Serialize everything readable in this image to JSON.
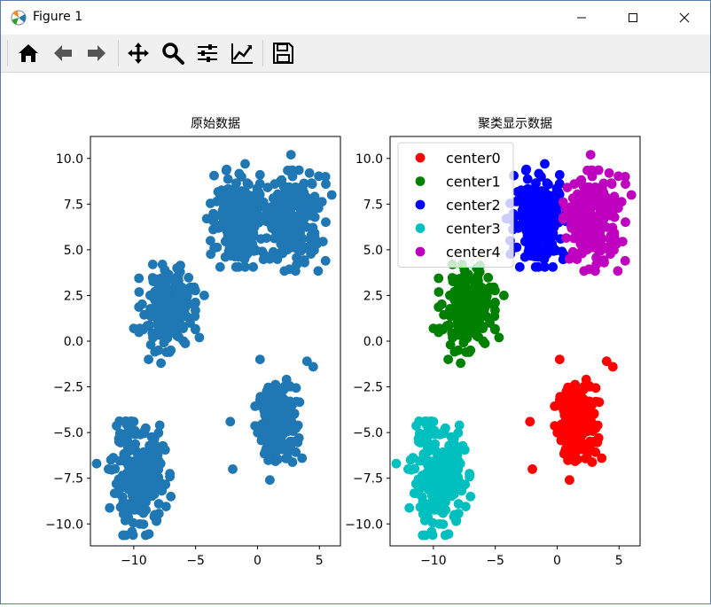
{
  "window": {
    "title": "Figure 1",
    "controls": [
      "minimize",
      "maximize",
      "close"
    ]
  },
  "toolbar": {
    "buttons": [
      {
        "name": "home-icon",
        "tooltip": "Reset original view"
      },
      {
        "name": "back-icon",
        "tooltip": "Back"
      },
      {
        "name": "forward-icon",
        "tooltip": "Forward"
      },
      {
        "name": "pan-icon",
        "tooltip": "Pan"
      },
      {
        "name": "zoom-icon",
        "tooltip": "Zoom"
      },
      {
        "name": "configure-subplots-icon",
        "tooltip": "Configure subplots"
      },
      {
        "name": "edit-axis-icon",
        "tooltip": "Edit axis"
      },
      {
        "name": "save-icon",
        "tooltip": "Save the figure"
      }
    ]
  },
  "chart_data": [
    {
      "type": "scatter",
      "title": "原始数据",
      "xlabel": "",
      "ylabel": "",
      "xlim": [
        -13.5,
        6.7
      ],
      "ylim": [
        -11.2,
        11.2
      ],
      "xticks": [
        -10,
        -5,
        0,
        5
      ],
      "xtick_labels": [
        "−10",
        "−5",
        "0",
        "5"
      ],
      "yticks": [
        10,
        7.5,
        5,
        2.5,
        0,
        -2.5,
        -5,
        -7.5,
        -10
      ],
      "ytick_labels": [
        "10.0",
        "7.5",
        "5.0",
        "2.5",
        "0.0",
        "−2.5",
        "−5.0",
        "−7.5",
        "−10.0"
      ],
      "grid": false,
      "colors": {
        "points": "#1f77b4"
      },
      "clusters": [
        {
          "center": [
            1.6,
            -4.5
          ],
          "spread": [
            0.75,
            1.0
          ],
          "n": 230,
          "outliers": [
            [
              0.2,
              -1.0
            ],
            [
              4.0,
              -1.1
            ],
            [
              4.5,
              -1.4
            ],
            [
              -2.0,
              -7.0
            ],
            [
              1.0,
              -7.6
            ],
            [
              3.6,
              -6.4
            ],
            [
              -2.2,
              -4.4
            ]
          ]
        },
        {
          "center": [
            -7.3,
            1.8
          ],
          "spread": [
            0.95,
            1.0
          ],
          "n": 230,
          "outliers": [
            [
              -10.0,
              0.7
            ],
            [
              -9.5,
              0.7
            ],
            [
              -8.0,
              -0.5
            ],
            [
              -6.0,
              2.5
            ],
            [
              -7.5,
              3.9
            ],
            [
              -4.3,
              2.5
            ],
            [
              -8.8,
              -1.0
            ],
            [
              -7.8,
              -1.2
            ],
            [
              -7.0,
              -0.5
            ],
            [
              -4.7,
              0.2
            ],
            [
              -6.5,
              4.0
            ]
          ]
        },
        {
          "center": [
            -9.6,
            -7.5
          ],
          "spread": [
            1.05,
            1.3
          ],
          "n": 230,
          "outliers": [
            [
              -10.5,
              -4.4
            ],
            [
              -10.0,
              -4.4
            ],
            [
              -9.5,
              -10.0
            ],
            [
              -13.0,
              -6.7
            ],
            [
              -7.9,
              -4.6
            ],
            [
              -7.0,
              -8.5
            ],
            [
              -8.3,
              -9.5
            ]
          ]
        },
        {
          "center": [
            -1.4,
            6.7
          ],
          "spread": [
            1.0,
            1.1
          ],
          "n": 230,
          "outliers": [
            [
              -2.5,
              9.4
            ],
            [
              -1.0,
              9.7
            ],
            [
              0.2,
              9.1
            ],
            [
              -3.5,
              5.1
            ],
            [
              -1.2,
              4.6
            ],
            [
              -4.1,
              6.7
            ],
            [
              -2.6,
              4.6
            ]
          ]
        },
        {
          "center": [
            3.0,
            6.6
          ],
          "spread": [
            1.05,
            1.15
          ],
          "n": 230,
          "outliers": [
            [
              2.7,
              10.2
            ],
            [
              4.2,
              9.2
            ],
            [
              5.5,
              9.0
            ],
            [
              6.0,
              8.0
            ],
            [
              5.5,
              4.4
            ],
            [
              1.0,
              4.5
            ],
            [
              3.8,
              4.3
            ]
          ]
        }
      ]
    },
    {
      "type": "scatter",
      "title": "聚类显示数据",
      "xlabel": "",
      "ylabel": "",
      "xlim": [
        -13.5,
        6.7
      ],
      "ylim": [
        -11.2,
        11.2
      ],
      "xticks": [
        -10,
        -5,
        0,
        5
      ],
      "xtick_labels": [
        "−10",
        "−5",
        "0",
        "5"
      ],
      "yticks": [
        10,
        7.5,
        5,
        2.5,
        0,
        -2.5,
        -5,
        -7.5,
        -10
      ],
      "ytick_labels": [
        "10.0",
        "7.5",
        "5.0",
        "2.5",
        "0.0",
        "−2.5",
        "−5.0",
        "−7.5",
        "−10.0"
      ],
      "grid": false,
      "legend": {
        "placement": "upper-left",
        "entries": [
          {
            "name": "center0",
            "color": "#ff0000"
          },
          {
            "name": "center1",
            "color": "#008000"
          },
          {
            "name": "center2",
            "color": "#0000ff"
          },
          {
            "name": "center3",
            "color": "#00bfbf"
          },
          {
            "name": "center4",
            "color": "#bf00bf"
          }
        ]
      },
      "series": [
        {
          "name": "center0",
          "color": "#ff0000",
          "cluster": 0
        },
        {
          "name": "center1",
          "color": "#008000",
          "cluster": 1
        },
        {
          "name": "center2",
          "color": "#0000ff",
          "cluster": 3
        },
        {
          "name": "center3",
          "color": "#00bfbf",
          "cluster": 2
        },
        {
          "name": "center4",
          "color": "#bf00bf",
          "cluster": 4
        }
      ]
    }
  ]
}
